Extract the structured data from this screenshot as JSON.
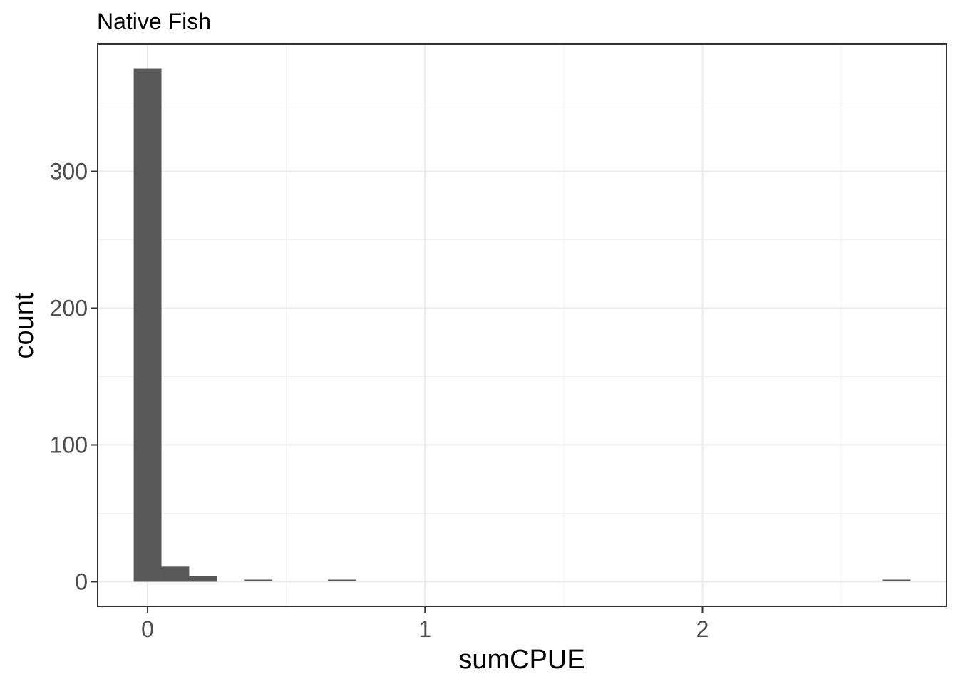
{
  "chart_data": {
    "type": "bar",
    "subtype": "histogram",
    "title": "Native Fish",
    "xlabel": "sumCPUE",
    "ylabel": "count",
    "xlim": [
      -0.18,
      2.88
    ],
    "ylim": [
      -18,
      393
    ],
    "x_ticks": [
      0,
      1,
      2
    ],
    "x_tick_labels": [
      "0",
      "1",
      "2"
    ],
    "y_ticks": [
      0,
      100,
      200,
      300
    ],
    "y_tick_labels": [
      "0",
      "100",
      "200",
      "300"
    ],
    "bin_width": 0.1,
    "bins": [
      {
        "x0": -0.05,
        "x1": 0.05,
        "count": 375
      },
      {
        "x0": 0.05,
        "x1": 0.15,
        "count": 11
      },
      {
        "x0": 0.15,
        "x1": 0.25,
        "count": 4
      },
      {
        "x0": 0.35,
        "x1": 0.45,
        "count": 1
      },
      {
        "x0": 0.65,
        "x1": 0.75,
        "count": 1
      },
      {
        "x0": 2.65,
        "x1": 2.75,
        "count": 1
      }
    ],
    "grid": true,
    "legend": "none",
    "colors": {
      "bar": "#595959",
      "grid_major": "#ebebeb",
      "grid_minor": "#f2f2f2",
      "border": "#333333"
    }
  }
}
